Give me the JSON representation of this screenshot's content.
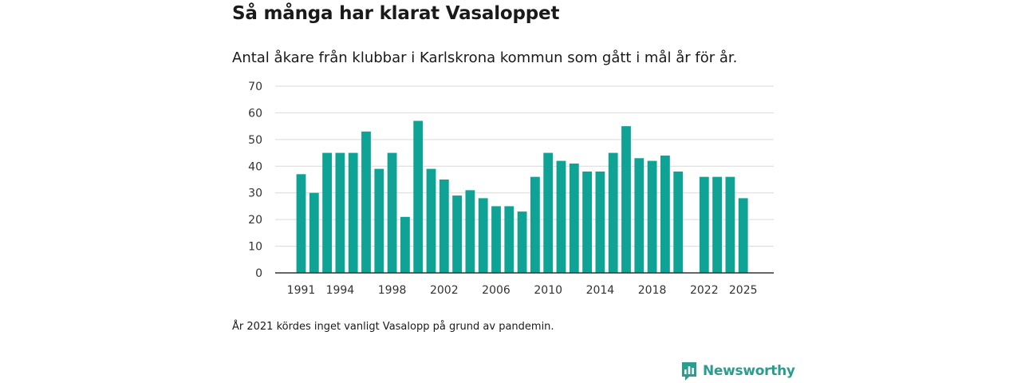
{
  "chart_data": {
    "type": "bar",
    "title": "Så många har klarat Vasaloppet",
    "subtitle": "Antal åkare från klubbar i Karlskrona kommun som gått i mål år för år.",
    "xlabel": "",
    "ylabel": "",
    "ylim": [
      0,
      70
    ],
    "yticks": [
      0,
      10,
      20,
      30,
      40,
      50,
      60,
      70
    ],
    "xticks": [
      1991,
      1994,
      1998,
      2002,
      2006,
      2010,
      2014,
      2018,
      2022,
      2025
    ],
    "x": [
      1991,
      1992,
      1993,
      1994,
      1995,
      1996,
      1997,
      1998,
      1999,
      2000,
      2001,
      2002,
      2003,
      2004,
      2005,
      2006,
      2007,
      2008,
      2009,
      2010,
      2011,
      2012,
      2013,
      2014,
      2015,
      2016,
      2017,
      2018,
      2019,
      2020,
      2021,
      2022,
      2023,
      2024,
      2025
    ],
    "values": [
      37,
      30,
      45,
      45,
      45,
      53,
      39,
      45,
      21,
      57,
      39,
      35,
      29,
      31,
      28,
      25,
      25,
      23,
      36,
      45,
      42,
      41,
      38,
      38,
      45,
      55,
      43,
      42,
      44,
      38,
      null,
      36,
      36,
      36,
      28
    ],
    "colors": {
      "bar": "#0fa396",
      "grid": "#d9d9d9",
      "axis": "#333333"
    },
    "note": "År 2021 kördes inget vanligt Vasalopp på grund av pandemin."
  },
  "branding": {
    "logo_text": "Newsworthy",
    "logo_icon": "bar-chart-speech-icon",
    "color": "#2a9d8f"
  }
}
